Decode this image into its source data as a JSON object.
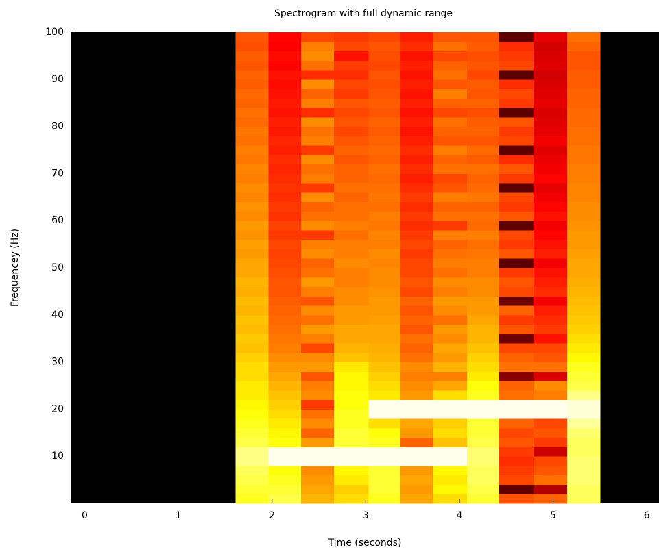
{
  "chart_data": {
    "type": "heatmap",
    "title": "Spectrogram with full dynamic range",
    "xlabel": "Time (seconds)",
    "ylabel": "Frequencey (Hz)",
    "colormap": "hot",
    "zlim": [
      0,
      100
    ],
    "xlim": [
      -0.15,
      6.13
    ],
    "ylim": [
      0,
      100
    ],
    "xticks": [
      0,
      1,
      2,
      3,
      4,
      5,
      6
    ],
    "yticks": [
      10,
      20,
      30,
      40,
      50,
      60,
      70,
      80,
      90,
      100
    ],
    "x_edges": [
      1.61,
      1.96,
      2.31,
      2.66,
      3.03,
      3.37,
      3.72,
      4.08,
      4.42,
      4.79,
      5.15,
      5.5
    ],
    "y_edges": [
      0,
      2,
      4,
      6,
      8,
      10,
      12,
      14,
      16,
      18,
      20,
      22,
      24,
      26,
      28,
      30,
      32,
      34,
      36,
      38,
      40,
      42,
      44,
      46,
      48,
      50,
      52,
      54,
      56,
      58,
      60,
      62,
      64,
      66,
      68,
      70,
      72,
      74,
      76,
      78,
      80,
      82,
      84,
      86,
      88,
      90,
      92,
      94,
      96,
      98,
      100
    ],
    "z": [
      [
        78,
        80,
        82,
        84,
        88,
        88,
        82,
        80,
        78,
        76,
        74,
        72,
        72,
        70,
        70,
        68,
        66,
        67,
        65,
        66,
        64,
        65,
        63,
        64,
        62,
        62,
        60,
        61,
        59,
        60,
        58,
        59,
        57,
        58,
        56,
        57,
        55,
        56,
        54,
        55,
        53,
        54,
        52,
        53,
        51,
        52,
        50,
        51,
        49,
        50
      ],
      [
        82,
        80,
        78,
        76,
        98,
        98,
        76,
        74,
        72,
        70,
        68,
        66,
        64,
        62,
        60,
        58,
        56,
        55,
        54,
        53,
        52,
        51,
        50,
        50,
        49,
        48,
        47,
        48,
        46,
        47,
        45,
        46,
        44,
        45,
        44,
        43,
        44,
        42,
        43,
        41,
        42,
        40,
        41,
        40,
        39,
        40,
        38,
        39,
        37,
        38
      ],
      [
        64,
        62,
        60,
        58,
        98,
        98,
        60,
        52,
        58,
        54,
        46,
        58,
        56,
        50,
        60,
        58,
        48,
        56,
        60,
        54,
        58,
        50,
        56,
        60,
        54,
        52,
        58,
        56,
        46,
        58,
        54,
        52,
        58,
        46,
        56,
        54,
        58,
        46,
        56,
        54,
        58,
        44,
        56,
        52,
        58,
        44,
        54,
        58,
        56,
        48
      ],
      [
        70,
        68,
        72,
        74,
        98,
        98,
        80,
        80,
        78,
        78,
        76,
        76,
        74,
        74,
        72,
        66,
        64,
        62,
        62,
        60,
        60,
        58,
        58,
        56,
        56,
        58,
        56,
        56,
        54,
        56,
        54,
        54,
        52,
        54,
        52,
        52,
        50,
        52,
        50,
        48,
        50,
        48,
        50,
        46,
        48,
        44,
        46,
        40,
        48,
        46
      ],
      [
        78,
        80,
        80,
        80,
        98,
        98,
        78,
        76,
        70,
        98,
        98,
        72,
        70,
        68,
        66,
        64,
        63,
        62,
        62,
        61,
        60,
        60,
        59,
        58,
        58,
        57,
        58,
        56,
        57,
        55,
        56,
        54,
        55,
        54,
        53,
        54,
        52,
        53,
        52,
        51,
        52,
        50,
        51,
        50,
        49,
        50,
        48,
        49,
        50,
        48
      ],
      [
        62,
        60,
        62,
        60,
        98,
        98,
        52,
        60,
        62,
        98,
        98,
        60,
        58,
        56,
        58,
        54,
        52,
        54,
        50,
        52,
        50,
        52,
        48,
        50,
        48,
        48,
        46,
        48,
        46,
        44,
        46,
        44,
        46,
        44,
        42,
        44,
        42,
        44,
        42,
        40,
        42,
        40,
        42,
        40,
        42,
        40,
        42,
        40,
        44,
        42
      ],
      [
        70,
        74,
        72,
        74,
        98,
        98,
        66,
        70,
        68,
        98,
        98,
        70,
        62,
        56,
        64,
        60,
        62,
        58,
        60,
        54,
        58,
        60,
        56,
        58,
        54,
        56,
        54,
        52,
        56,
        46,
        54,
        52,
        56,
        50,
        48,
        54,
        52,
        56,
        50,
        52,
        54,
        48,
        52,
        56,
        50,
        54,
        52,
        48,
        54,
        50
      ],
      [
        80,
        82,
        84,
        84,
        86,
        86,
        82,
        80,
        80,
        98,
        98,
        78,
        76,
        72,
        70,
        68,
        66,
        64,
        64,
        62,
        60,
        60,
        58,
        58,
        56,
        56,
        55,
        54,
        56,
        53,
        54,
        52,
        55,
        53,
        52,
        54,
        51,
        53,
        50,
        52,
        51,
        49,
        52,
        50,
        51,
        48,
        50,
        49,
        51,
        50
      ],
      [
        50,
        14,
        48,
        46,
        44,
        46,
        50,
        48,
        52,
        98,
        98,
        54,
        52,
        20,
        54,
        52,
        48,
        16,
        50,
        46,
        52,
        16,
        48,
        50,
        46,
        14,
        50,
        46,
        48,
        14,
        50,
        46,
        48,
        14,
        46,
        50,
        44,
        14,
        48,
        46,
        50,
        14,
        46,
        48,
        44,
        14,
        48,
        46,
        44,
        14
      ],
      [
        52,
        26,
        54,
        50,
        48,
        30,
        46,
        50,
        48,
        98,
        98,
        56,
        58,
        32,
        54,
        50,
        48,
        40,
        46,
        44,
        42,
        36,
        44,
        42,
        40,
        36,
        42,
        40,
        38,
        36,
        40,
        38,
        36,
        34,
        38,
        36,
        35,
        33,
        36,
        34,
        33,
        32,
        34,
        33,
        32,
        31,
        33,
        32,
        31,
        34
      ],
      [
        84,
        84,
        86,
        86,
        86,
        84,
        84,
        86,
        90,
        96,
        96,
        88,
        82,
        80,
        78,
        74,
        72,
        70,
        68,
        67,
        66,
        65,
        64,
        63,
        62,
        62,
        61,
        60,
        60,
        59,
        58,
        58,
        57,
        57,
        56,
        56,
        55,
        55,
        54,
        54,
        53,
        53,
        52,
        52,
        51,
        51,
        50,
        50,
        52,
        54
      ]
    ]
  }
}
